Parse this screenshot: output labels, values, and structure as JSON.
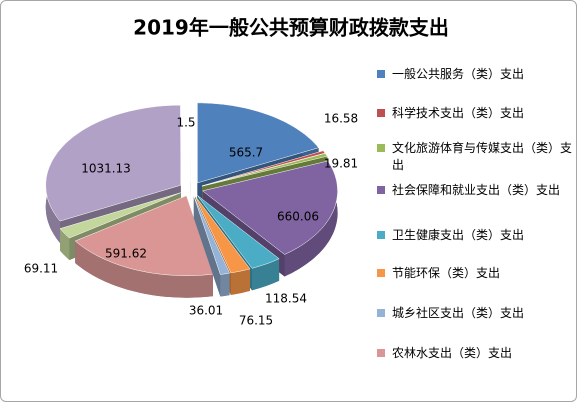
{
  "chart_data": {
    "type": "pie",
    "title": "2019年一般公共预算财政拨款支出",
    "categories": [
      "一般公共服务（类）支出",
      "科学技术支出（类）支出",
      "文化旅游体育与传媒支出（类）支出",
      "社会保障和就业支出（类）支出",
      "卫生健康支出（类）支出",
      "节能环保（类）支出",
      "城乡社区支出（类）支出",
      "农林水支出（类）支出",
      null,
      null,
      null
    ],
    "values": [
      565.7,
      16.58,
      19.81,
      660.06,
      118.54,
      76.15,
      36.01,
      591.62,
      69.11,
      1031.13,
      1.5
    ],
    "colors": [
      "#4f81bd",
      "#c0504d",
      "#9bbb59",
      "#8064a2",
      "#4bacc6",
      "#f79646",
      "#95b3d7",
      "#d99694",
      "#c3d69b",
      "#b2a1c7",
      "#f2f2f2"
    ],
    "legend": "right"
  }
}
